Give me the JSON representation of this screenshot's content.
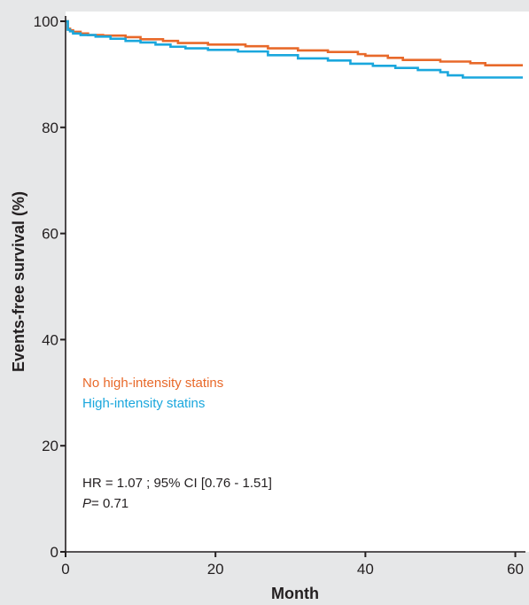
{
  "chart_data": {
    "type": "line",
    "step": true,
    "xlabel": "Month",
    "ylabel": "Events-free survival (%)",
    "xlim": [
      0,
      61
    ],
    "ylim": [
      0,
      101
    ],
    "xticks": [
      0,
      20,
      40,
      60
    ],
    "yticks": [
      0,
      20,
      40,
      60,
      80,
      100
    ],
    "grid": false,
    "legend_position": "center-left",
    "series": [
      {
        "name": "No high-intensity statins",
        "color": "#e8692a",
        "x": [
          0,
          0.3,
          0.6,
          1,
          2,
          3,
          5,
          8,
          10,
          13,
          15,
          19,
          24,
          27,
          31,
          35,
          39,
          40,
          43,
          45,
          50,
          54,
          56,
          61
        ],
        "y": [
          100,
          98.6,
          98.3,
          98,
          97.7,
          97.4,
          97.3,
          97,
          96.6,
          96.3,
          95.9,
          95.6,
          95.3,
          94.9,
          94.5,
          94.2,
          93.8,
          93.5,
          93.1,
          92.7,
          92.4,
          92.1,
          91.7,
          91.7
        ]
      },
      {
        "name": "High-intensity statins",
        "color": "#1aa7dd",
        "x": [
          0,
          0.3,
          0.6,
          1,
          2,
          4,
          6,
          8,
          10,
          12,
          14,
          16,
          19,
          23,
          27,
          31,
          35,
          38,
          41,
          44,
          47,
          50,
          51,
          53,
          61
        ],
        "y": [
          100,
          98.4,
          98.1,
          97.7,
          97.4,
          97.1,
          96.7,
          96.3,
          96,
          95.6,
          95.2,
          94.9,
          94.6,
          94.3,
          93.6,
          93,
          92.6,
          92,
          91.6,
          91.2,
          90.8,
          90.4,
          89.8,
          89.4,
          89.4
        ]
      }
    ],
    "annotations": {
      "hr_text": "HR = 1.07 ; 95% CI [0.76 - 1.51]",
      "p_label": "P",
      "p_value": "= 0.71"
    }
  }
}
